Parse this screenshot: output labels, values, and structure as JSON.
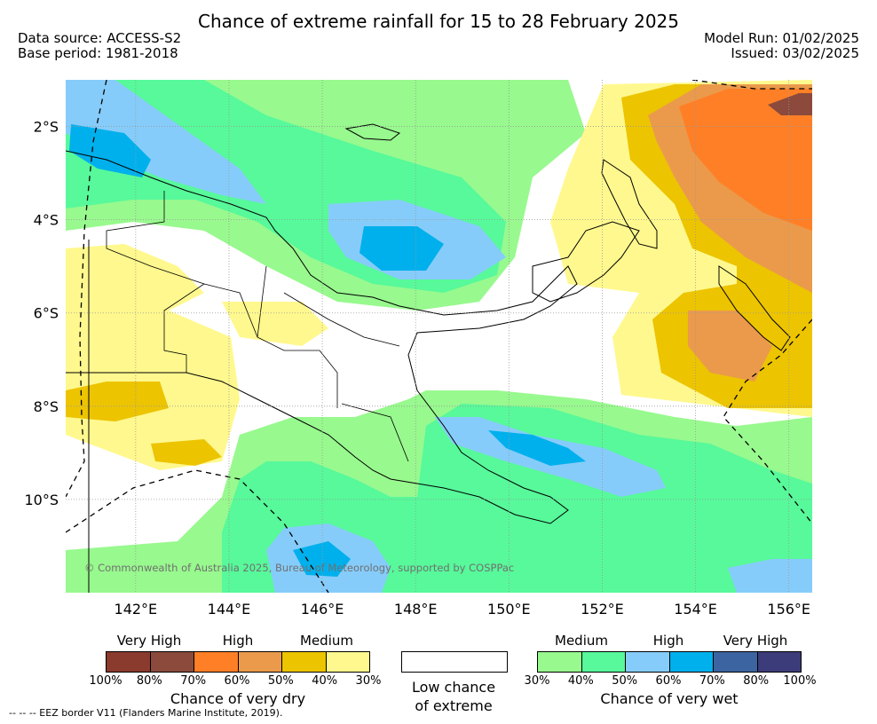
{
  "title": "Chance of extreme rainfall for 15 to 28 February 2025",
  "data_source": "Data source: ACCESS-S2",
  "base_period": "Base period: 1981-2018",
  "model_run": "Model Run: 01/02/2025",
  "issued": "Issued: 03/02/2025",
  "map": {
    "lon_range": [
      140.5,
      156.5
    ],
    "lat_range": [
      -12.0,
      -1.0
    ],
    "lat_ticks": [
      {
        "value": -2,
        "label": "2°S"
      },
      {
        "value": -4,
        "label": "4°S"
      },
      {
        "value": -6,
        "label": "6°S"
      },
      {
        "value": -8,
        "label": "8°S"
      },
      {
        "value": -10,
        "label": "10°S"
      }
    ],
    "lon_ticks": [
      {
        "value": 142,
        "label": "142°E"
      },
      {
        "value": 144,
        "label": "144°E"
      },
      {
        "value": 146,
        "label": "146°E"
      },
      {
        "value": 148,
        "label": "148°E"
      },
      {
        "value": 150,
        "label": "150°E"
      },
      {
        "value": 152,
        "label": "152°E"
      },
      {
        "value": 154,
        "label": "154°E"
      },
      {
        "value": 156,
        "label": "156°E"
      }
    ],
    "grid": true,
    "copyright": "© Commonwealth of Australia 2025, Bureau of Meteorology, supported by COSPPac"
  },
  "legend_dry": {
    "headers": [
      "Very High",
      "High",
      "Medium"
    ],
    "colors": [
      "#8b3a2e",
      "#8b4a3c",
      "#ff7f27",
      "#eb9a4b",
      "#ecc400",
      "#fff88e"
    ],
    "ticks": [
      "100%",
      "80%",
      "70%",
      "60%",
      "50%",
      "40%",
      "30%"
    ],
    "caption": "Chance of very dry"
  },
  "legend_low": {
    "color": "#ffffff",
    "caption_line1": "Low chance",
    "caption_line2": "of extreme"
  },
  "legend_wet": {
    "headers": [
      "Medium",
      "High",
      "Very High"
    ],
    "colors": [
      "#98f98e",
      "#57f99a",
      "#86ccfa",
      "#00b0ec",
      "#3c64a0",
      "#3c3c7a"
    ],
    "ticks": [
      "30%",
      "40%",
      "50%",
      "60%",
      "70%",
      "80%",
      "100%"
    ],
    "caption": "Chance of very wet"
  },
  "footnote": "--  --  -- EEZ border V11 (Flanders Marine Institute, 2019)."
}
